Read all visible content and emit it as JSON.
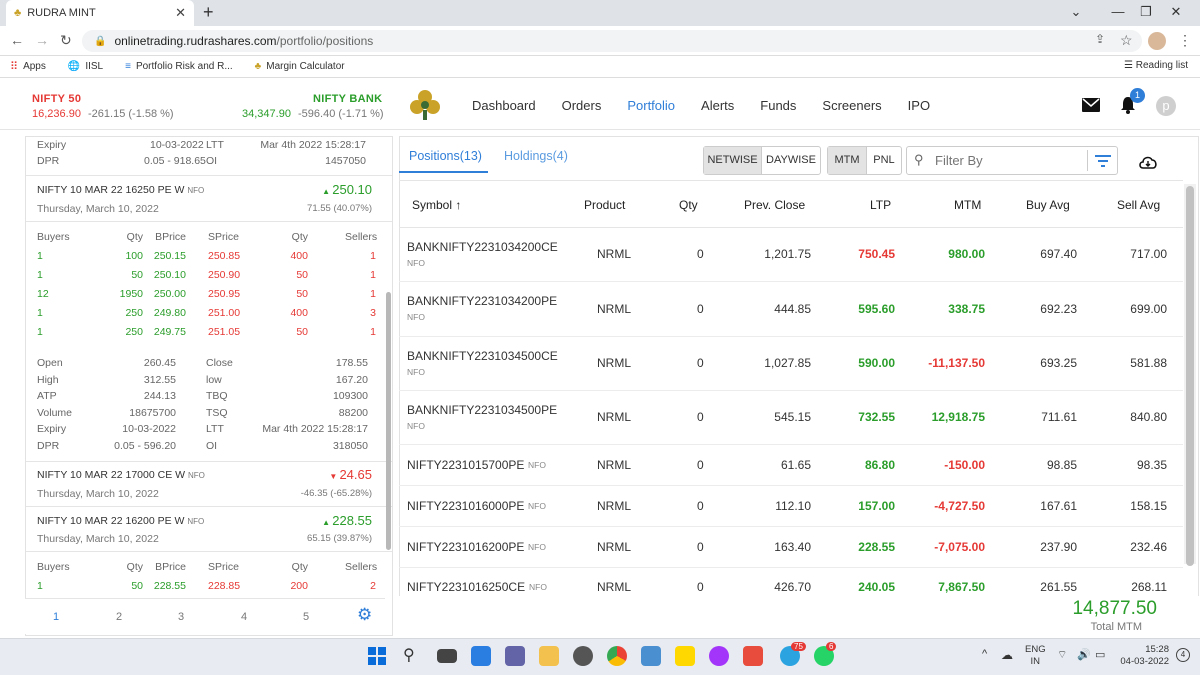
{
  "browser": {
    "tab_title": "RUDRA MINT",
    "url_domain": "onlinetrading.rudrashares.com",
    "url_path": "/portfolio/positions",
    "bookmarks": [
      "Apps",
      "IISL",
      "Portfolio Risk and R...",
      "Margin Calculator"
    ],
    "reading_list": "Reading list"
  },
  "indices": {
    "nifty": {
      "name": "NIFTY 50",
      "value": "16,236.90",
      "change": "-261.15 (-1.58 %)"
    },
    "banknifty": {
      "name": "NIFTY BANK",
      "value": "34,347.90",
      "change": "-596.40 (-1.71 %)"
    }
  },
  "nav": [
    "Dashboard",
    "Orders",
    "Portfolio",
    "Alerts",
    "Funds",
    "Screeners",
    "IPO"
  ],
  "header": {
    "notification_count": "1",
    "avatar_letter": "p"
  },
  "left": {
    "top": {
      "expiry_label": "Expiry",
      "expiry": "10-03-2022",
      "ltt_label": "LTT",
      "ltt": "Mar 4th 2022 15:28:17",
      "dpr_label": "DPR",
      "dpr": "0.05 - 918.65",
      "oi_label": "OI",
      "oi": "1457050"
    },
    "c1": {
      "name": "NIFTY 10 MAR 22 16250 PE W",
      "exch": "NFO",
      "ltp": "250.10",
      "date": "Thursday, March 10, 2022",
      "chg": "71.55 (40.07%)"
    },
    "depth_headers": [
      "Buyers",
      "Qty",
      "BPrice",
      "SPrice",
      "Qty",
      "Sellers"
    ],
    "depth": [
      [
        "1",
        "100",
        "250.15",
        "250.85",
        "400",
        "1"
      ],
      [
        "1",
        "50",
        "250.10",
        "250.90",
        "50",
        "1"
      ],
      [
        "12",
        "1950",
        "250.00",
        "250.95",
        "50",
        "1"
      ],
      [
        "1",
        "250",
        "249.80",
        "251.00",
        "400",
        "3"
      ],
      [
        "1",
        "250",
        "249.75",
        "251.05",
        "50",
        "1"
      ]
    ],
    "stats": [
      [
        "Open",
        "260.45",
        "Close",
        "178.55"
      ],
      [
        "High",
        "312.55",
        "low",
        "167.20"
      ],
      [
        "ATP",
        "244.13",
        "TBQ",
        "109300"
      ],
      [
        "Volume",
        "18675700",
        "TSQ",
        "88200"
      ],
      [
        "Expiry",
        "10-03-2022",
        "LTT",
        "Mar 4th 2022 15:28:17"
      ],
      [
        "DPR",
        "0.05 - 596.20",
        "OI",
        "318050"
      ]
    ],
    "c2": {
      "name": "NIFTY 10 MAR 22 17000 CE W",
      "exch": "NFO",
      "ltp": "24.65",
      "date": "Thursday, March 10, 2022",
      "chg": "-46.35 (-65.28%)"
    },
    "c3": {
      "name": "NIFTY 10 MAR 22 16200 PE W",
      "exch": "NFO",
      "ltp": "228.55",
      "date": "Thursday, March 10, 2022",
      "chg": "65.15 (39.87%)"
    },
    "depth2": [
      "1",
      "50",
      "228.55",
      "228.85",
      "200",
      "2"
    ],
    "pages": [
      "1",
      "2",
      "3",
      "4",
      "5"
    ]
  },
  "right": {
    "tab_positions": "Positions(13)",
    "tab_holdings": "Holdings(4)",
    "toggle1": [
      "NETWISE",
      "DAYWISE"
    ],
    "toggle2": [
      "MTM",
      "PNL"
    ],
    "filter_placeholder": "Filter By",
    "columns": [
      "Symbol",
      "Product",
      "Qty",
      "Prev. Close",
      "LTP",
      "MTM",
      "Buy Avg",
      "Sell Avg"
    ],
    "rows": [
      {
        "symbol": "BANKNIFTY2231034200CE",
        "exch": "NFO",
        "product": "NRML",
        "qty": "0",
        "prev": "1,201.75",
        "ltp": "750.45",
        "ltp_color": "red",
        "mtm": "980.00",
        "mtm_color": "green",
        "buy": "697.40",
        "sell": "717.00"
      },
      {
        "symbol": "BANKNIFTY2231034200PE",
        "exch": "NFO",
        "product": "NRML",
        "qty": "0",
        "prev": "444.85",
        "ltp": "595.60",
        "ltp_color": "green",
        "mtm": "338.75",
        "mtm_color": "green",
        "buy": "692.23",
        "sell": "699.00"
      },
      {
        "symbol": "BANKNIFTY2231034500CE",
        "exch": "NFO",
        "product": "NRML",
        "qty": "0",
        "prev": "1,027.85",
        "ltp": "590.00",
        "ltp_color": "green",
        "mtm": "-11,137.50",
        "mtm_color": "red",
        "buy": "693.25",
        "sell": "581.88"
      },
      {
        "symbol": "BANKNIFTY2231034500PE",
        "exch": "NFO",
        "product": "NRML",
        "qty": "0",
        "prev": "545.15",
        "ltp": "732.55",
        "ltp_color": "green",
        "mtm": "12,918.75",
        "mtm_color": "green",
        "buy": "711.61",
        "sell": "840.80"
      },
      {
        "symbol": "NIFTY2231015700PE",
        "exch": "NFO",
        "product": "NRML",
        "qty": "0",
        "prev": "61.65",
        "ltp": "86.80",
        "ltp_color": "green",
        "mtm": "-150.00",
        "mtm_color": "red",
        "buy": "98.85",
        "sell": "98.35"
      },
      {
        "symbol": "NIFTY2231016000PE",
        "exch": "NFO",
        "product": "NRML",
        "qty": "0",
        "prev": "112.10",
        "ltp": "157.00",
        "ltp_color": "green",
        "mtm": "-4,727.50",
        "mtm_color": "red",
        "buy": "167.61",
        "sell": "158.15"
      },
      {
        "symbol": "NIFTY2231016200PE",
        "exch": "NFO",
        "product": "NRML",
        "qty": "0",
        "prev": "163.40",
        "ltp": "228.55",
        "ltp_color": "green",
        "mtm": "-7,075.00",
        "mtm_color": "red",
        "buy": "237.90",
        "sell": "232.46"
      },
      {
        "symbol": "NIFTY2231016250CE",
        "exch": "NFO",
        "product": "NRML",
        "qty": "0",
        "prev": "426.70",
        "ltp": "240.05",
        "ltp_color": "green",
        "mtm": "7,867.50",
        "mtm_color": "green",
        "buy": "261.55",
        "sell": "268.11"
      }
    ],
    "total_mtm_value": "14,877.50",
    "total_mtm_label": "Total MTM"
  },
  "taskbar": {
    "lang": "ENG",
    "region": "IN",
    "time": "15:28",
    "date": "04-03-2022",
    "badge_telegram": "75",
    "badge_whatsapp": "6",
    "notif": "4"
  }
}
